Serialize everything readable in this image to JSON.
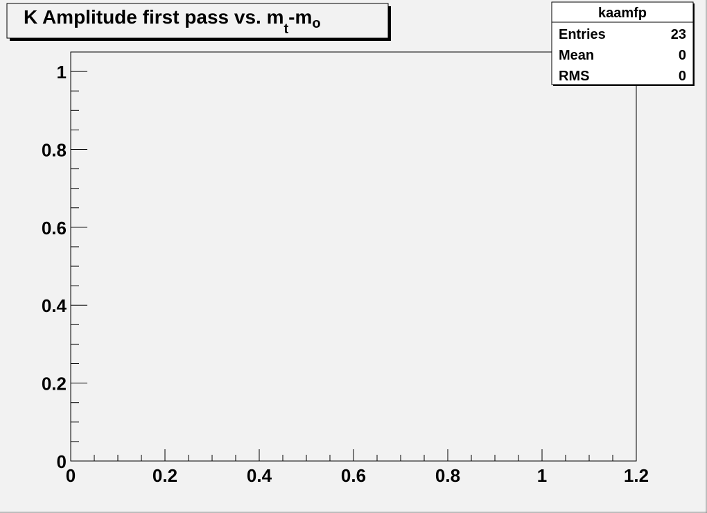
{
  "chart_data": {
    "type": "histogram",
    "title": [
      "K Amplitude first pass vs. m",
      "t",
      "-m",
      "o"
    ],
    "stats": {
      "name": "kaamfp",
      "rows": [
        [
          "Entries",
          23
        ],
        [
          "Mean",
          0
        ],
        [
          "RMS",
          0
        ]
      ]
    },
    "xlim": [
      0,
      1.2
    ],
    "xticks": [
      0,
      0.2,
      0.4,
      0.6,
      0.8,
      1,
      1.2
    ],
    "xminorticks": [
      0.05,
      0.1,
      0.15,
      0.25,
      0.3,
      0.35,
      0.45,
      0.5,
      0.55,
      0.65,
      0.7,
      0.75,
      0.85,
      0.9,
      0.95,
      1.05,
      1.1,
      1.15
    ],
    "ylim": [
      0,
      1.05
    ],
    "yticks": [
      0,
      0.2,
      0.4,
      0.6,
      0.8,
      1
    ],
    "yminorticks": [
      0.05,
      0.1,
      0.15,
      0.25,
      0.3,
      0.35,
      0.45,
      0.5,
      0.55,
      0.65,
      0.7,
      0.75,
      0.85,
      0.9,
      0.95,
      1.05
    ],
    "color": "#000000"
  }
}
